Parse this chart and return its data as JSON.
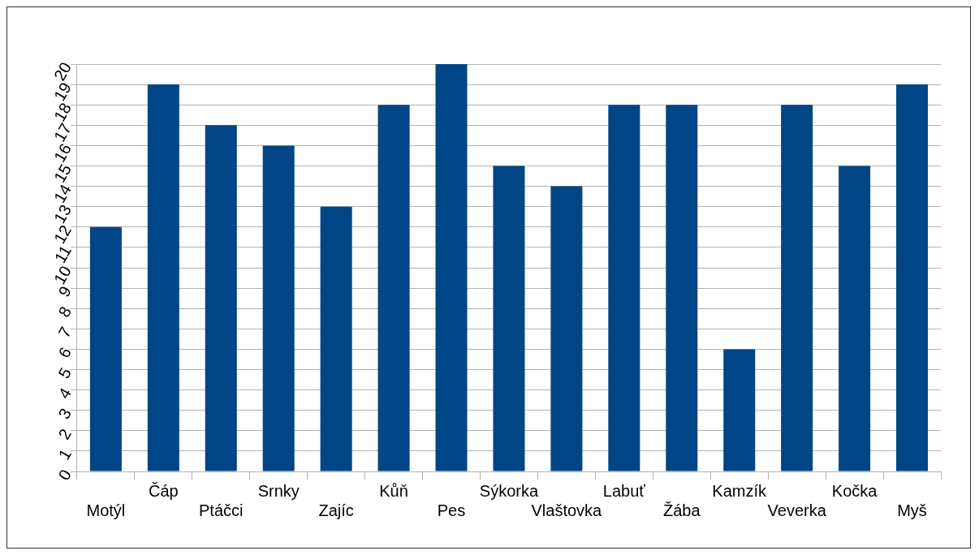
{
  "chart_data": {
    "type": "bar",
    "categories": [
      "Motýl",
      "Čáp",
      "Ptáčci",
      "Srnky",
      "Zajíc",
      "Kůň",
      "Pes",
      "Sýkorka",
      "Vlaštovka",
      "Labuť",
      "Žába",
      "Kamzík",
      "Veverka",
      "Kočka",
      "Myš"
    ],
    "values": [
      12,
      19,
      17,
      16,
      13,
      18,
      20,
      15,
      14,
      18,
      18,
      6,
      18,
      15,
      19
    ],
    "color": "#004586",
    "ylim": [
      0,
      20
    ],
    "yticks": [
      0,
      1,
      2,
      3,
      4,
      5,
      6,
      7,
      8,
      9,
      10,
      11,
      12,
      13,
      14,
      15,
      16,
      17,
      18,
      19,
      20
    ],
    "grid": "y",
    "legend": false
  }
}
